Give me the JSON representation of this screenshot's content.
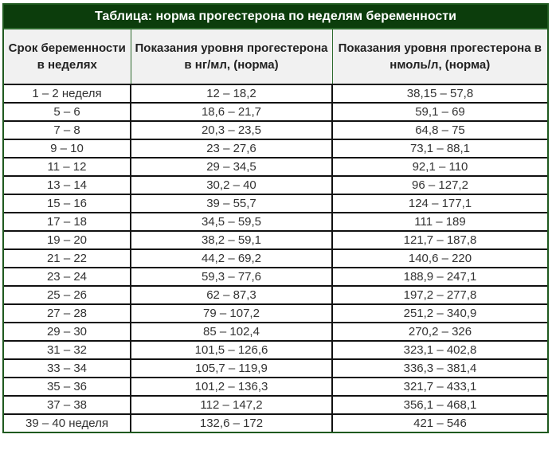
{
  "title": "Таблица: норма прогестерона по неделям беременности",
  "headers": [
    "Срок беременности в неделях",
    "Показания уровня прогестерона в нг/мл, (норма)",
    "Показания уровня прогестерона в нмоль/л, (норма)"
  ],
  "rows": [
    [
      "1 – 2 неделя",
      "12 – 18,2",
      "38,15 – 57,8"
    ],
    [
      "5 – 6",
      "18,6 – 21,7",
      "59,1 – 69"
    ],
    [
      "7 – 8",
      "20,3 – 23,5",
      "64,8 – 75"
    ],
    [
      "9 – 10",
      "23 – 27,6",
      "73,1 – 88,1"
    ],
    [
      "11 – 12",
      "29 – 34,5",
      "92,1 – 110"
    ],
    [
      "13 – 14",
      "30,2 – 40",
      "96 – 127,2"
    ],
    [
      "15 – 16",
      "39 – 55,7",
      "124 – 177,1"
    ],
    [
      "17 – 18",
      "34,5 – 59,5",
      "111 – 189"
    ],
    [
      "19 – 20",
      "38,2 – 59,1",
      "121,7 – 187,8"
    ],
    [
      "21 – 22",
      "44,2 – 69,2",
      "140,6 – 220"
    ],
    [
      "23 – 24",
      "59,3 – 77,6",
      "188,9 – 247,1"
    ],
    [
      "25 – 26",
      "62 – 87,3",
      "197,2 – 277,8"
    ],
    [
      "27 – 28",
      "79 – 107,2",
      "251,2 – 340,9"
    ],
    [
      "29 – 30",
      "85 – 102,4",
      "270,2 – 326"
    ],
    [
      "31 – 32",
      "101,5 – 126,6",
      "323,1 – 402,8"
    ],
    [
      "33 – 34",
      "105,7 – 119,9",
      "336,3 – 381,4"
    ],
    [
      "35 – 36",
      "101,2 – 136,3",
      "321,7 – 433,1"
    ],
    [
      "37 – 38",
      "112 – 147,2",
      "356,1 – 468,1"
    ],
    [
      "39 – 40 неделя",
      "132,6 – 172",
      "421 – 546"
    ]
  ],
  "colors": {
    "title_bg": "#0c3d0c",
    "border_green": "#1f5a1f",
    "header_bg": "#f1f1f1"
  }
}
